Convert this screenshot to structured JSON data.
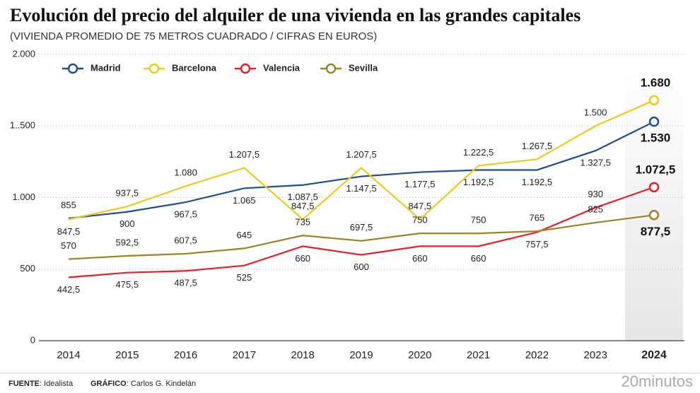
{
  "chart_data": {
    "type": "line",
    "title": "Evolución del precio del alquiler de una vivienda en las grandes capitales",
    "subtitle": "(VIVIENDA PROMEDIO DE 75 METROS CUADRADO / CIFRAS EN EUROS)",
    "categories": [
      "2014",
      "2015",
      "2016",
      "2017",
      "2018",
      "2019",
      "2020",
      "2021",
      "2022",
      "2023",
      "2024"
    ],
    "series": [
      {
        "name": "Madrid",
        "color": "#1f4e96",
        "values": [
          855,
          900,
          967.5,
          1065,
          1087.5,
          1147.5,
          1177.5,
          1192.5,
          1192.5,
          1327.5,
          1530
        ],
        "value_labels": [
          "855",
          "900",
          "967,5",
          "1.065",
          "1.087,5",
          "1.147,5",
          "1.177,5",
          "1.192,5",
          "1.192,5",
          "1.327,5",
          "1.530"
        ]
      },
      {
        "name": "Barcelona",
        "color": "#f2c81e",
        "values": [
          847.5,
          937.5,
          1080,
          1207.5,
          847.5,
          1207.5,
          847.5,
          1222.5,
          1267.5,
          1500,
          1680
        ],
        "value_labels": [
          "847,5",
          "937,5",
          "1.080",
          "1.207,5",
          "847,5",
          "1.207,5",
          "847,5",
          "1.222,5",
          "1.267,5",
          "1.500",
          "1.680"
        ]
      },
      {
        "name": "Valencia",
        "color": "#e8202a",
        "values": [
          442.5,
          475.5,
          487.5,
          525,
          660,
          600,
          660,
          660,
          757.5,
          930,
          1072.5
        ],
        "value_labels": [
          "442,5",
          "475,5",
          "487,5",
          "525",
          "660",
          "600",
          "660",
          "660",
          "757,5",
          "930",
          "1.072,5"
        ]
      },
      {
        "name": "Sevilla",
        "color": "#9c8426",
        "values": [
          570,
          592.5,
          607.5,
          645,
          735,
          697.5,
          750,
          750,
          765,
          825,
          877.5
        ],
        "value_labels": [
          "570",
          "592,5",
          "607,5",
          "645",
          "735",
          "697,5",
          "750",
          "750",
          "765",
          "825",
          "877,5"
        ]
      }
    ],
    "ylim": [
      0,
      2000
    ],
    "yticks": [
      0,
      500,
      {
        "value": 1000,
        "label": "1.000"
      },
      {
        "value": 1500,
        "label": "1..500"
      },
      {
        "value": 2000,
        "label": "2.000"
      }
    ],
    "grid": true,
    "legend": "top-left"
  },
  "footer": {
    "source_label": "FUENTE",
    "source": ": Idealista",
    "credit_label": "GRÁFICO",
    "credit": ": Carlos G. Kindelán",
    "logo": "20minutos"
  }
}
